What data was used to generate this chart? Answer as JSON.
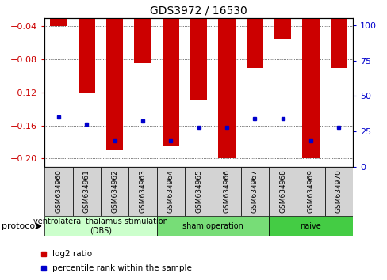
{
  "title": "GDS3972 / 16530",
  "samples": [
    "GSM634960",
    "GSM634961",
    "GSM634962",
    "GSM634963",
    "GSM634964",
    "GSM634965",
    "GSM634966",
    "GSM634967",
    "GSM634968",
    "GSM634969",
    "GSM634970"
  ],
  "log2_ratio": [
    -0.04,
    -0.12,
    -0.19,
    -0.085,
    -0.185,
    -0.13,
    -0.2,
    -0.09,
    -0.055,
    -0.2,
    -0.09
  ],
  "percentile_values": [
    35,
    30,
    18,
    32,
    18,
    28,
    28,
    34,
    34,
    18,
    28
  ],
  "ylim_left": [
    -0.21,
    -0.03
  ],
  "ylim_right": [
    0,
    105
  ],
  "yticks_left": [
    -0.2,
    -0.16,
    -0.12,
    -0.08,
    -0.04
  ],
  "yticks_right": [
    0,
    25,
    50,
    75,
    100
  ],
  "groups": [
    {
      "label": "ventrolateral thalamus stimulation\n(DBS)",
      "start": 0,
      "end": 3,
      "color": "#ccffcc"
    },
    {
      "label": "sham operation",
      "start": 4,
      "end": 7,
      "color": "#77dd77"
    },
    {
      "label": "naive",
      "start": 8,
      "end": 10,
      "color": "#44cc44"
    }
  ],
  "bar_color": "#cc0000",
  "dot_color": "#0000cc",
  "title_fontsize": 10,
  "tick_label_fontsize": 6.5,
  "axis_color_left": "#cc0000",
  "axis_color_right": "#0000cc",
  "legend_fontsize": 7.5,
  "protocol_fontsize": 8,
  "group_fontsize": 7
}
